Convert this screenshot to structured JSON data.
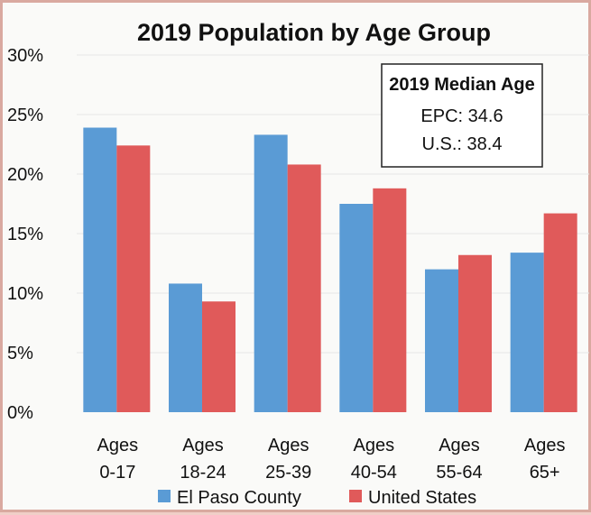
{
  "chart_data": {
    "type": "bar",
    "title": "2019 Population by Age Group",
    "categories": [
      [
        "Ages",
        "0-17"
      ],
      [
        "Ages",
        "18-24"
      ],
      [
        "Ages",
        "25-39"
      ],
      [
        "Ages",
        "40-54"
      ],
      [
        "Ages",
        "55-64"
      ],
      [
        "Ages",
        "65+"
      ]
    ],
    "series": [
      {
        "name": "El Paso County",
        "values": [
          23.9,
          10.8,
          23.3,
          17.5,
          12.0,
          13.4
        ],
        "color": "#5a9bd5"
      },
      {
        "name": "United States",
        "values": [
          22.4,
          9.3,
          20.8,
          18.8,
          13.2,
          16.7
        ],
        "color": "#e05a5a"
      }
    ],
    "ylim": [
      0,
      30
    ],
    "yticks": [
      "0%",
      "5%",
      "10%",
      "15%",
      "20%",
      "25%",
      "30%"
    ],
    "grid": true,
    "legend": "bottom",
    "annotation": {
      "title": "2019 Median Age",
      "lines": [
        "EPC: 34.6",
        "U.S.: 38.4"
      ]
    }
  }
}
